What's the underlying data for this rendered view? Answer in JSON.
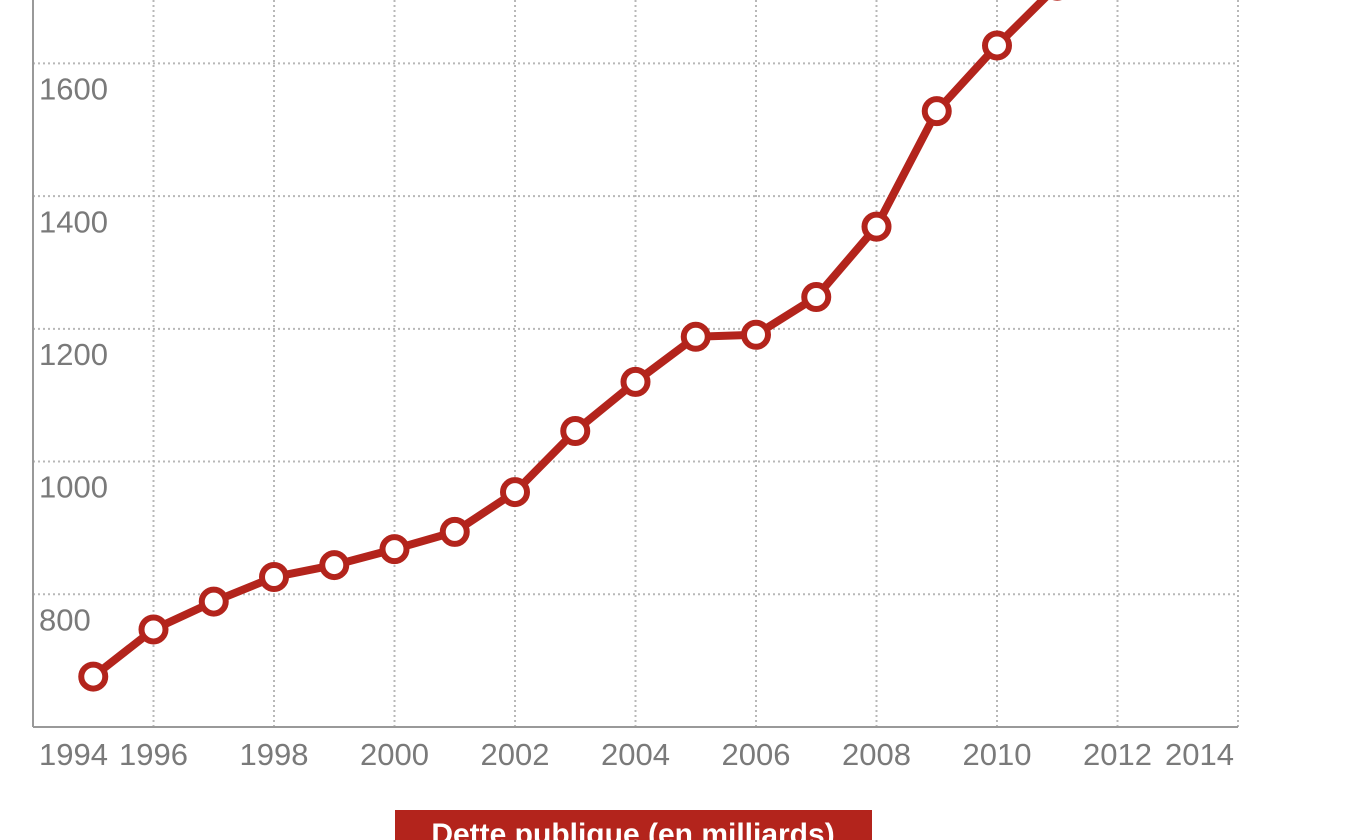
{
  "chart_data": {
    "type": "line",
    "x": [
      1995,
      1996,
      1997,
      1998,
      1999,
      2000,
      2001,
      2002,
      2003,
      2004,
      2005,
      2006,
      2007,
      2008,
      2009,
      2010,
      2011
    ],
    "series": [
      {
        "name": "Dette publique (en milliards)",
        "color": "#b3241c",
        "values": [
          676,
          747,
          789,
          826,
          844,
          868,
          894,
          954,
          1046,
          1120,
          1188,
          1191,
          1248,
          1354,
          1528,
          1627,
          1717
        ]
      }
    ],
    "xlim": [
      1994,
      2014
    ],
    "xticks": [
      1994,
      1996,
      1998,
      2000,
      2002,
      2004,
      2006,
      2008,
      2010,
      2012,
      2014
    ],
    "ylim": [
      600,
      1700
    ],
    "yticks": [
      800,
      1000,
      1200,
      1400,
      1600
    ],
    "grid": true
  }
}
